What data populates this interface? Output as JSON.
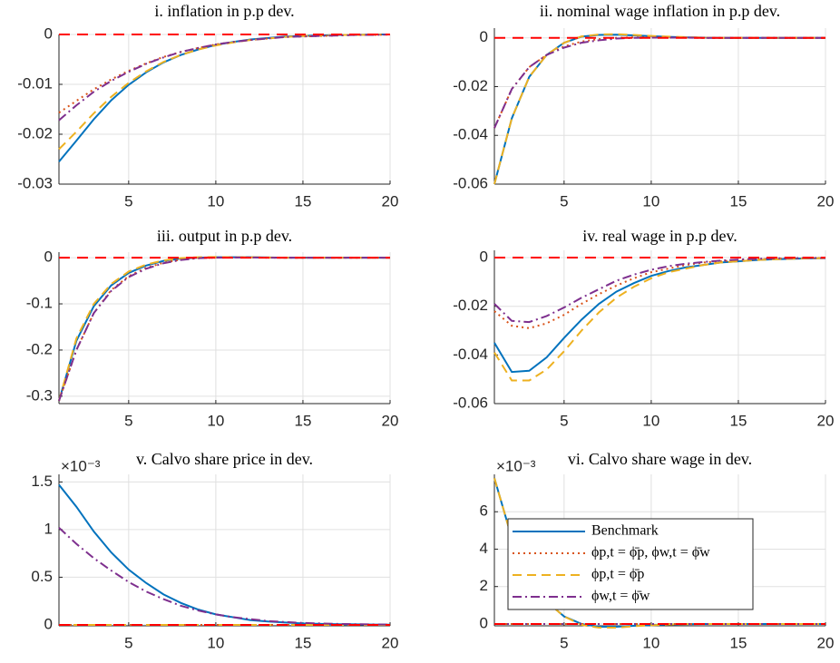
{
  "chart_data": [
    {
      "type": "line",
      "title": "i. inflation in p.p dev.",
      "x": [
        1,
        2,
        3,
        4,
        5,
        6,
        7,
        8,
        9,
        10,
        11,
        12,
        13,
        14,
        15,
        16,
        17,
        18,
        19,
        20
      ],
      "xlim": [
        1,
        20
      ],
      "xticks": [
        5,
        10,
        15,
        20
      ],
      "ylim": [
        -0.03,
        0
      ],
      "yticks": [
        -0.03,
        -0.02,
        -0.01,
        0
      ],
      "grid": true,
      "reference_line": {
        "value": 0,
        "color": "#ff0000"
      },
      "series": [
        {
          "color": "#0072bd",
          "values": [
            -0.0255,
            -0.0213,
            -0.017,
            -0.0132,
            -0.0101,
            -0.0076,
            -0.0056,
            -0.0041,
            -0.003,
            -0.0021,
            -0.0015,
            -0.001,
            -0.0007,
            -0.0004,
            -0.0003,
            -0.0002,
            -0.0001,
            -0.0001,
            0,
            0
          ]
        },
        {
          "color": "#d95319",
          "values": [
            -0.0157,
            -0.0133,
            -0.011,
            -0.009,
            -0.0073,
            -0.0058,
            -0.0045,
            -0.0035,
            -0.0027,
            -0.002,
            -0.0015,
            -0.0011,
            -0.0008,
            -0.0005,
            -0.0004,
            -0.0003,
            -0.0002,
            -0.0001,
            -0.0001,
            0
          ]
        },
        {
          "color": "#edb120",
          "values": [
            -0.023,
            -0.0195,
            -0.0158,
            -0.0125,
            -0.0097,
            -0.0074,
            -0.0055,
            -0.0041,
            -0.003,
            -0.0022,
            -0.0016,
            -0.0011,
            -0.0008,
            -0.0005,
            -0.0003,
            -0.0002,
            -0.0001,
            -0.0001,
            0,
            0
          ]
        },
        {
          "color": "#7e2f8e",
          "values": [
            -0.0172,
            -0.0142,
            -0.0115,
            -0.0093,
            -0.0075,
            -0.0059,
            -0.0046,
            -0.0035,
            -0.0027,
            -0.002,
            -0.0015,
            -0.0011,
            -0.0008,
            -0.0005,
            -0.0004,
            -0.0003,
            -0.0002,
            -0.0001,
            -0.0001,
            0
          ]
        }
      ]
    },
    {
      "type": "line",
      "title": "ii. nominal wage inflation in p.p dev.",
      "x": [
        1,
        2,
        3,
        4,
        5,
        6,
        7,
        8,
        9,
        10,
        11,
        12,
        13,
        14,
        15,
        16,
        17,
        18,
        19,
        20
      ],
      "xlim": [
        1,
        20
      ],
      "xticks": [
        5,
        10,
        15,
        20
      ],
      "ylim": [
        -0.06,
        0.004
      ],
      "yticks": [
        -0.06,
        -0.04,
        -0.02,
        0
      ],
      "grid": true,
      "reference_line": {
        "value": 0,
        "color": "#ff0000"
      },
      "series": [
        {
          "color": "#0072bd",
          "values": [
            -0.06,
            -0.033,
            -0.016,
            -0.007,
            -0.002,
            0.0005,
            0.0012,
            0.0013,
            0.001,
            0.0007,
            0.0004,
            0.0002,
            0.0001,
            0,
            0,
            0,
            0,
            0,
            0,
            0
          ]
        },
        {
          "color": "#d95319",
          "values": [
            -0.037,
            -0.021,
            -0.012,
            -0.007,
            -0.0035,
            -0.0015,
            -0.0005,
            0,
            0.0002,
            0.0002,
            0.0001,
            0.0001,
            0,
            0,
            0,
            0,
            0,
            0,
            0,
            0
          ]
        },
        {
          "color": "#edb120",
          "values": [
            -0.06,
            -0.033,
            -0.016,
            -0.007,
            -0.002,
            0.0006,
            0.0014,
            0.0015,
            0.0012,
            0.0008,
            0.0005,
            0.0003,
            0.0001,
            0,
            0,
            0,
            0,
            0,
            0,
            0
          ]
        },
        {
          "color": "#7e2f8e",
          "values": [
            -0.037,
            -0.021,
            -0.012,
            -0.007,
            -0.004,
            -0.002,
            -0.001,
            -0.0003,
            0,
            0.0001,
            0.0001,
            0.0001,
            0,
            0,
            0,
            0,
            0,
            0,
            0,
            0
          ]
        }
      ]
    },
    {
      "type": "line",
      "title": "iii. output in p.p dev.",
      "x": [
        1,
        2,
        3,
        4,
        5,
        6,
        7,
        8,
        9,
        10,
        11,
        12,
        13,
        14,
        15,
        16,
        17,
        18,
        19,
        20
      ],
      "xlim": [
        1,
        20
      ],
      "xticks": [
        5,
        10,
        15,
        20
      ],
      "ylim": [
        -0.316,
        0.012
      ],
      "yticks": [
        -0.3,
        -0.2,
        -0.1,
        0
      ],
      "grid": true,
      "reference_line": {
        "value": 0,
        "color": "#ff0000"
      },
      "series": [
        {
          "color": "#0072bd",
          "values": [
            -0.31,
            -0.18,
            -0.105,
            -0.06,
            -0.033,
            -0.017,
            -0.007,
            -0.002,
            0,
            0.001,
            0.001,
            0.001,
            0.0005,
            0,
            0,
            0,
            0,
            0,
            0,
            0
          ]
        },
        {
          "color": "#d95319",
          "values": [
            -0.31,
            -0.2,
            -0.12,
            -0.07,
            -0.04,
            -0.022,
            -0.011,
            -0.004,
            -0.001,
            0,
            0.0005,
            0.0005,
            0,
            0,
            0,
            0,
            0,
            0,
            0,
            0
          ]
        },
        {
          "color": "#edb120",
          "values": [
            -0.31,
            -0.175,
            -0.1,
            -0.057,
            -0.03,
            -0.015,
            -0.006,
            -0.001,
            0.001,
            0.0015,
            0.001,
            0.001,
            0.0005,
            0,
            0,
            0,
            0,
            0,
            0,
            0
          ]
        },
        {
          "color": "#7e2f8e",
          "values": [
            -0.31,
            -0.2,
            -0.12,
            -0.072,
            -0.042,
            -0.024,
            -0.012,
            -0.005,
            -0.001,
            0,
            0.0005,
            0.0005,
            0,
            0,
            0,
            0,
            0,
            0,
            0,
            0
          ]
        }
      ]
    },
    {
      "type": "line",
      "title": "iv. real wage in p.p dev.",
      "x": [
        1,
        2,
        3,
        4,
        5,
        6,
        7,
        8,
        9,
        10,
        11,
        12,
        13,
        14,
        15,
        16,
        17,
        18,
        19,
        20
      ],
      "xlim": [
        1,
        20
      ],
      "xticks": [
        5,
        10,
        15,
        20
      ],
      "ylim": [
        -0.06,
        0.003
      ],
      "yticks": [
        -0.06,
        -0.04,
        -0.02,
        0
      ],
      "grid": true,
      "reference_line": {
        "value": 0,
        "color": "#ff0000"
      },
      "series": [
        {
          "color": "#0072bd",
          "values": [
            -0.035,
            -0.047,
            -0.0465,
            -0.041,
            -0.033,
            -0.0255,
            -0.019,
            -0.014,
            -0.0105,
            -0.0075,
            -0.0055,
            -0.004,
            -0.003,
            -0.002,
            -0.0015,
            -0.001,
            -0.0007,
            -0.0005,
            -0.0003,
            -0.0002
          ]
        },
        {
          "color": "#d95319",
          "values": [
            -0.022,
            -0.028,
            -0.029,
            -0.027,
            -0.0235,
            -0.019,
            -0.015,
            -0.0115,
            -0.0085,
            -0.006,
            -0.0045,
            -0.003,
            -0.002,
            -0.0015,
            -0.001,
            -0.0007,
            -0.0005,
            -0.0003,
            -0.0002,
            -0.0001
          ]
        },
        {
          "color": "#edb120",
          "values": [
            -0.039,
            -0.0505,
            -0.0505,
            -0.046,
            -0.0385,
            -0.03,
            -0.0225,
            -0.0165,
            -0.012,
            -0.0085,
            -0.006,
            -0.0045,
            -0.003,
            -0.002,
            -0.0015,
            -0.001,
            -0.0007,
            -0.0005,
            -0.0003,
            -0.0002
          ]
        },
        {
          "color": "#7e2f8e",
          "values": [
            -0.019,
            -0.026,
            -0.0265,
            -0.024,
            -0.0205,
            -0.0165,
            -0.013,
            -0.0095,
            -0.007,
            -0.005,
            -0.0035,
            -0.0025,
            -0.0018,
            -0.0012,
            -0.0008,
            -0.0005,
            -0.0003,
            -0.0002,
            -0.0001,
            -0.0001
          ]
        }
      ]
    },
    {
      "type": "line",
      "title": "v. Calvo share price in dev.",
      "y_exponent_label": "×10⁻³",
      "x": [
        1,
        2,
        3,
        4,
        5,
        6,
        7,
        8,
        9,
        10,
        11,
        12,
        13,
        14,
        15,
        16,
        17,
        18,
        19,
        20
      ],
      "xlim": [
        1,
        20
      ],
      "xticks": [
        5,
        10,
        15,
        20
      ],
      "ylim": [
        -0.01,
        1.58
      ],
      "yticks": [
        0,
        0.5,
        1,
        1.5
      ],
      "grid": true,
      "reference_line": {
        "value": 0,
        "color": "#ff0000"
      },
      "series": [
        {
          "color": "#0072bd",
          "values": [
            1.47,
            1.24,
            0.98,
            0.76,
            0.58,
            0.44,
            0.32,
            0.23,
            0.16,
            0.11,
            0.08,
            0.05,
            0.035,
            0.025,
            0.015,
            0.01,
            0.007,
            0.005,
            0.003,
            0.002
          ]
        },
        {
          "color": "#d95319",
          "values": [
            0,
            0,
            0,
            0,
            0,
            0,
            0,
            0,
            0,
            0,
            0,
            0,
            0,
            0,
            0,
            0,
            0,
            0,
            0,
            0
          ]
        },
        {
          "color": "#edb120",
          "values": [
            0,
            0,
            0,
            0,
            0,
            0,
            0,
            0,
            0,
            0,
            0,
            0,
            0,
            0,
            0,
            0,
            0,
            0,
            0,
            0
          ]
        },
        {
          "color": "#7e2f8e",
          "values": [
            1.02,
            0.85,
            0.7,
            0.57,
            0.45,
            0.35,
            0.27,
            0.2,
            0.15,
            0.11,
            0.08,
            0.06,
            0.04,
            0.03,
            0.02,
            0.015,
            0.01,
            0.007,
            0.005,
            0.003
          ]
        }
      ]
    },
    {
      "type": "line",
      "title": "vi. Calvo share wage in dev.",
      "y_exponent_label": "×10⁻³",
      "x": [
        1,
        2,
        3,
        4,
        5,
        6,
        7,
        8,
        9,
        10,
        11,
        12,
        13,
        14,
        15,
        16,
        17,
        18,
        19,
        20
      ],
      "xlim": [
        1,
        20
      ],
      "xticks": [
        5,
        10,
        15,
        20
      ],
      "ylim": [
        -0.1,
        8
      ],
      "yticks": [
        0,
        2,
        4,
        6
      ],
      "grid": true,
      "reference_line": {
        "value": 0,
        "color": "#ff0000"
      },
      "legend": "lower left",
      "series": [
        {
          "name": "Benchmark",
          "color": "#0072bd",
          "values": [
            7.8,
            4.6,
            2.5,
            1.2,
            0.4,
            0,
            -0.15,
            -0.15,
            -0.1,
            -0.06,
            -0.03,
            -0.01,
            0,
            0,
            0,
            0,
            0,
            0,
            0,
            0
          ]
        },
        {
          "name": "ϕp,t = ϕ̄p, ϕw,t = ϕ̄w",
          "color": "#d95319",
          "values": [
            0,
            0,
            0,
            0,
            0,
            0,
            0,
            0,
            0,
            0,
            0,
            0,
            0,
            0,
            0,
            0,
            0,
            0,
            0,
            0
          ]
        },
        {
          "name": "ϕp,t = ϕ̄p",
          "color": "#edb120",
          "values": [
            7.8,
            4.6,
            2.5,
            1.2,
            0.4,
            -0.05,
            -0.2,
            -0.2,
            -0.12,
            -0.07,
            -0.03,
            -0.01,
            0,
            0,
            0,
            0,
            0,
            0,
            0,
            0
          ]
        },
        {
          "name": "ϕw,t = ϕ̄w",
          "color": "#7e2f8e",
          "values": [
            0,
            0,
            0,
            0,
            0,
            0,
            0,
            0,
            0,
            0,
            0,
            0,
            0,
            0,
            0,
            0,
            0,
            0,
            0,
            0
          ]
        }
      ]
    }
  ]
}
